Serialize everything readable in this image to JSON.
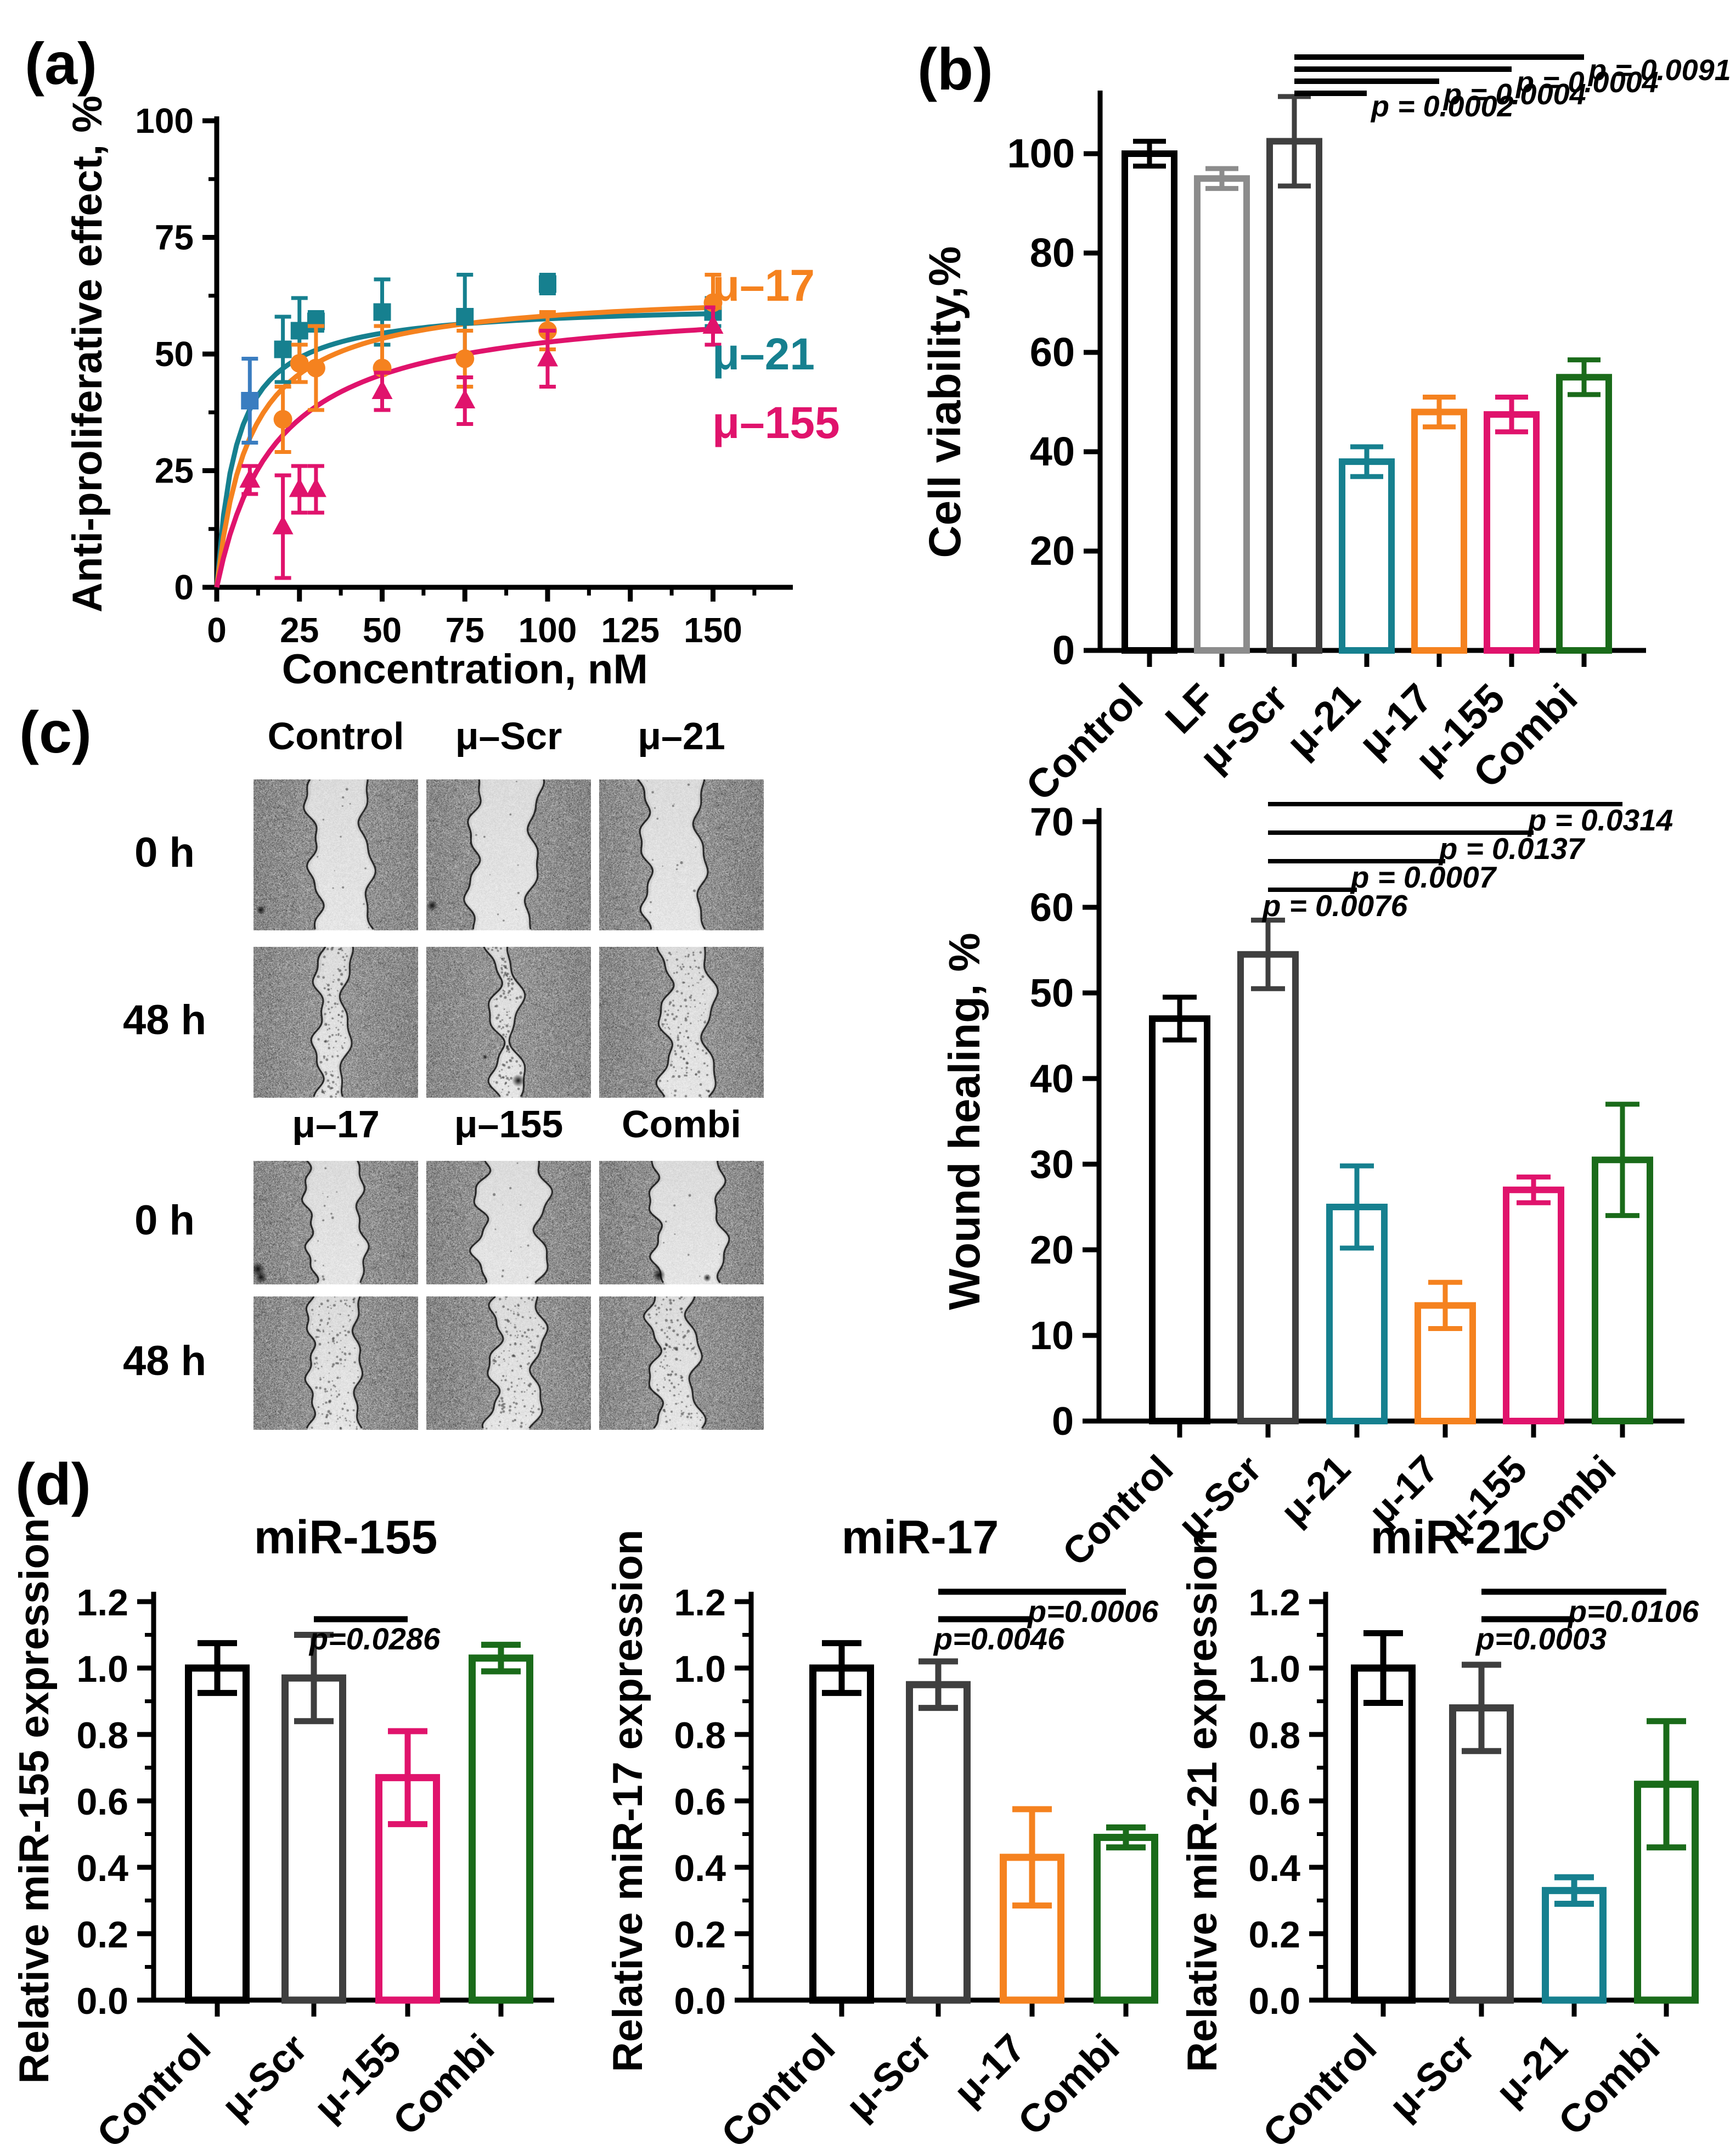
{
  "figure": {
    "panel_labels": {
      "a": "(a)",
      "b": "(b)",
      "c": "(c)",
      "d": "(d)"
    }
  },
  "palette": {
    "black": "#000000",
    "gray": "#8C8C8C",
    "dark_gray": "#3F3F3F",
    "teal": "#16808F",
    "blue": "#3A7DC0",
    "orange": "#F5821F",
    "magenta": "#E0136C",
    "green": "#1A6B1A"
  },
  "chart_data": [
    {
      "id": "dose_response",
      "panel": "a",
      "type": "scatter",
      "xlabel": "Concentration, nM",
      "ylabel": "Anti-proliferative effect, %",
      "xlim": [
        0,
        172
      ],
      "ylim": [
        0,
        100
      ],
      "xticks": [
        0,
        25,
        50,
        75,
        100,
        125,
        150
      ],
      "yticks": [
        0,
        25,
        50,
        75,
        100
      ],
      "legend_position": "right",
      "series": [
        {
          "name": "μ–21",
          "color": "teal",
          "marker": "square",
          "curve": {
            "ymax": 61,
            "k": 6
          },
          "points": [
            {
              "x": 10,
              "y": 40,
              "err": 9,
              "color": "blue"
            },
            {
              "x": 20,
              "y": 51,
              "err": 7
            },
            {
              "x": 25,
              "y": 55,
              "err": 7
            },
            {
              "x": 30,
              "y": 57,
              "err": 2
            },
            {
              "x": 50,
              "y": 59,
              "err": 7
            },
            {
              "x": 75,
              "y": 58,
              "err": 9
            },
            {
              "x": 100,
              "y": 65,
              "err": 2
            },
            {
              "x": 150,
              "y": 59,
              "err": 3
            }
          ]
        },
        {
          "name": "μ–17",
          "color": "orange",
          "marker": "circle",
          "curve": {
            "ymax": 64,
            "k": 10
          },
          "points": [
            {
              "x": 20,
              "y": 36,
              "err": 7
            },
            {
              "x": 25,
              "y": 48,
              "err": 4
            },
            {
              "x": 30,
              "y": 47,
              "err": 9
            },
            {
              "x": 50,
              "y": 47,
              "err": 9
            },
            {
              "x": 75,
              "y": 49,
              "err": 6
            },
            {
              "x": 100,
              "y": 55,
              "err": 4
            },
            {
              "x": 150,
              "y": 61,
              "err": 6
            }
          ]
        },
        {
          "name": "μ–155",
          "color": "magenta",
          "marker": "triangle",
          "curve": {
            "ymax": 62,
            "k": 18
          },
          "points": [
            {
              "x": 10,
              "y": 23,
              "err": 3
            },
            {
              "x": 20,
              "y": 13,
              "err": 11
            },
            {
              "x": 25,
              "y": 21,
              "err": 5
            },
            {
              "x": 30,
              "y": 21,
              "err": 5
            },
            {
              "x": 50,
              "y": 42,
              "err": 4
            },
            {
              "x": 75,
              "y": 40,
              "err": 5
            },
            {
              "x": 100,
              "y": 49,
              "err": 6
            },
            {
              "x": 150,
              "y": 56,
              "err": 4
            }
          ]
        }
      ],
      "legend": [
        {
          "label": "μ–17",
          "color": "orange"
        },
        {
          "label": "μ–21",
          "color": "teal"
        },
        {
          "label": "μ–155",
          "color": "magenta"
        }
      ]
    },
    {
      "id": "cell_viability",
      "panel": "b",
      "type": "bar",
      "ylabel": "Cell viability,%",
      "ylim": [
        0,
        100
      ],
      "ytick_step": 20,
      "minor_ticks": false,
      "categories": [
        "Control",
        "LF",
        "μ-Scr",
        "μ-21",
        "μ-17",
        "μ-155",
        "Combi"
      ],
      "values": [
        100,
        95,
        102.5,
        38,
        48,
        47.5,
        55
      ],
      "errors": [
        2.5,
        2,
        9,
        3,
        3,
        3.5,
        3.5
      ],
      "colors": [
        "black",
        "gray",
        "dark_gray",
        "teal",
        "orange",
        "magenta",
        "green"
      ],
      "significance": [
        {
          "from": "μ-Scr",
          "to": "μ-21",
          "label": "p = 0.0002"
        },
        {
          "from": "μ-Scr",
          "to": "μ-17",
          "label": "p = 0.0004"
        },
        {
          "from": "μ-Scr",
          "to": "μ-155",
          "label": "p = 0.0004"
        },
        {
          "from": "μ-Scr",
          "to": "Combi",
          "label": "p = 0.0091"
        }
      ]
    },
    {
      "id": "wound_healing",
      "panel": "c",
      "type": "bar",
      "ylabel": "Wound healing, %",
      "ylim": [
        0,
        70
      ],
      "ytick_step": 10,
      "minor_ticks": false,
      "categories": [
        "Control",
        "μ-Scr",
        "μ-21",
        "μ-17",
        "μ-155",
        "Combi"
      ],
      "values": [
        47,
        54.5,
        25,
        13.5,
        27,
        30.5
      ],
      "errors": [
        2.5,
        4,
        4.8,
        2.7,
        1.5,
        6.5
      ],
      "colors": [
        "black",
        "dark_gray",
        "teal",
        "orange",
        "magenta",
        "green"
      ],
      "significance": [
        {
          "from": "μ-Scr",
          "to": "μ-21",
          "label": "p = 0.0076"
        },
        {
          "from": "μ-Scr",
          "to": "μ-17",
          "label": "p = 0.0007"
        },
        {
          "from": "μ-Scr",
          "to": "μ-155",
          "label": "p = 0.0137"
        },
        {
          "from": "μ-Scr",
          "to": "Combi",
          "label": "p = 0.0314"
        }
      ]
    },
    {
      "id": "mir155",
      "panel": "d",
      "type": "bar",
      "title": "miR-155",
      "ylabel": "Relative miR-155 expression",
      "ylim": [
        0,
        1.2
      ],
      "ytick_step": 0.2,
      "minor_ticks": true,
      "categories": [
        "Control",
        "μ-Scr",
        "μ-155",
        "Combi"
      ],
      "values": [
        1.0,
        0.97,
        0.67,
        1.03
      ],
      "errors": [
        0.075,
        0.13,
        0.14,
        0.04
      ],
      "colors": [
        "black",
        "dark_gray",
        "magenta",
        "green"
      ],
      "significance": [
        {
          "from": "μ-Scr",
          "to": "μ-155",
          "label": "p=0.0286"
        }
      ]
    },
    {
      "id": "mir17",
      "panel": "d",
      "type": "bar",
      "title": "miR-17",
      "ylabel": "Relative miR-17 expression",
      "ylim": [
        0,
        1.2
      ],
      "ytick_step": 0.2,
      "minor_ticks": true,
      "categories": [
        "Control",
        "μ-Scr",
        "μ-17",
        "Combi"
      ],
      "values": [
        1.0,
        0.95,
        0.43,
        0.49
      ],
      "errors": [
        0.075,
        0.07,
        0.145,
        0.03
      ],
      "colors": [
        "black",
        "dark_gray",
        "orange",
        "green"
      ],
      "significance": [
        {
          "from": "μ-Scr",
          "to": "μ-17",
          "label": "p=0.0046"
        },
        {
          "from": "μ-Scr",
          "to": "Combi",
          "label": "p=0.0006"
        }
      ]
    },
    {
      "id": "mir21",
      "panel": "d",
      "type": "bar",
      "title": "miR-21",
      "ylabel": "Relative miR-21 expression",
      "ylim": [
        0,
        1.2
      ],
      "ytick_step": 0.2,
      "minor_ticks": true,
      "categories": [
        "Control",
        "μ-Scr",
        "μ-21",
        "Combi"
      ],
      "values": [
        1.0,
        0.88,
        0.33,
        0.65
      ],
      "errors": [
        0.105,
        0.13,
        0.04,
        0.19
      ],
      "colors": [
        "black",
        "dark_gray",
        "teal",
        "green"
      ],
      "significance": [
        {
          "from": "μ-Scr",
          "to": "μ-21",
          "label": "p=0.0003"
        },
        {
          "from": "μ-Scr",
          "to": "Combi",
          "label": "p=0.0106"
        }
      ]
    }
  ],
  "panel_c": {
    "row_labels": [
      "0 h",
      "48 h"
    ],
    "groups": [
      {
        "headers": [
          "Control",
          "μ–Scr",
          "μ–21"
        ],
        "rows": [
          [
            {
              "gap": 0.33,
              "debris": 14
            },
            {
              "gap": 0.37,
              "debris": 10
            },
            {
              "gap": 0.34,
              "debris": 16
            }
          ],
          [
            {
              "gap": 0.17,
              "debris": 120
            },
            {
              "gap": 0.13,
              "debris": 140
            },
            {
              "gap": 0.27,
              "debris": 150
            }
          ]
        ]
      },
      {
        "headers": [
          "μ–17",
          "μ–155",
          "Combi"
        ],
        "rows": [
          [
            {
              "gap": 0.32,
              "debris": 14
            },
            {
              "gap": 0.38,
              "debris": 12
            },
            {
              "gap": 0.4,
              "debris": 10
            }
          ],
          [
            {
              "gap": 0.29,
              "debris": 150
            },
            {
              "gap": 0.27,
              "debris": 150
            },
            {
              "gap": 0.25,
              "debris": 140
            }
          ]
        ]
      }
    ]
  }
}
